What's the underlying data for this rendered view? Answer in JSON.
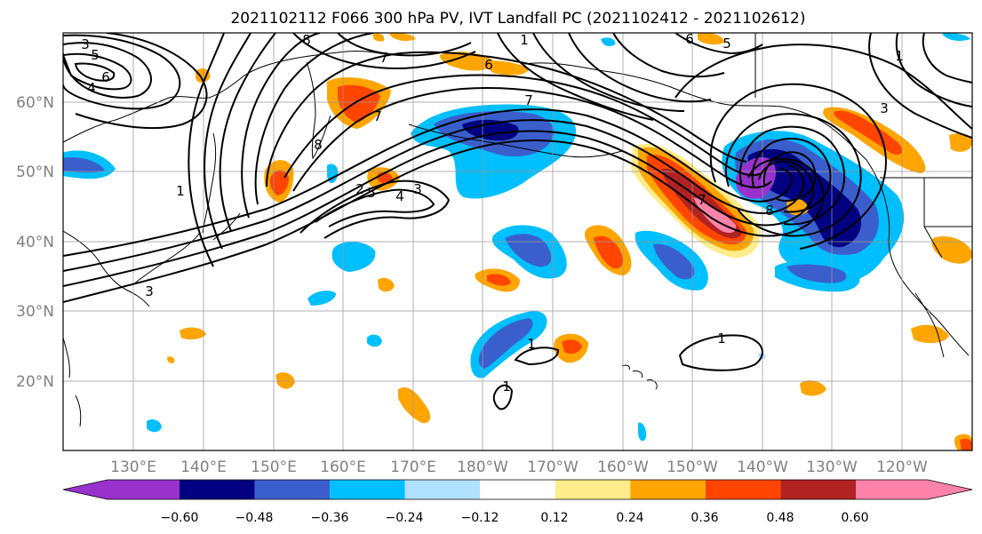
{
  "title": "2021102112 F066 300 hPa PV, IVT Landfall PC (2021102412 - 2021102612)",
  "lon_ticks": [
    "130°E",
    "140°E",
    "150°E",
    "160°E",
    "170°E",
    "180°W",
    "170°W",
    "160°W",
    "150°W",
    "140°W",
    "130°W",
    "120°W"
  ],
  "lat_ticks": [
    "60°N",
    "50°N",
    "40°N",
    "30°N",
    "20°N"
  ],
  "colorbar": {
    "colors": [
      "#9932cc",
      "#000080",
      "#3a5fcd",
      "#00bfff",
      "#b0e2ff",
      "#ffffff",
      "#ffec8b",
      "#ffa500",
      "#ff4500",
      "#b22222",
      "#ff82ab"
    ],
    "tick_labels": [
      "−0.60",
      "−0.48",
      "−0.36",
      "−0.24",
      "−0.12",
      "0.12",
      "0.24",
      "0.36",
      "0.48",
      "0.60"
    ]
  },
  "contour_labels": [
    "3",
    "5",
    "6",
    "4",
    "8",
    "7",
    "1",
    "6",
    "5",
    "1",
    "6",
    "7",
    "3",
    "7",
    "8",
    "2",
    "5",
    "3",
    "4",
    "3",
    "1",
    "7",
    "8",
    "1",
    "1",
    "1"
  ],
  "colors": {
    "contour": "#000000",
    "coastline": "#000000",
    "grid": "#999999",
    "tick_text": "#808080"
  }
}
